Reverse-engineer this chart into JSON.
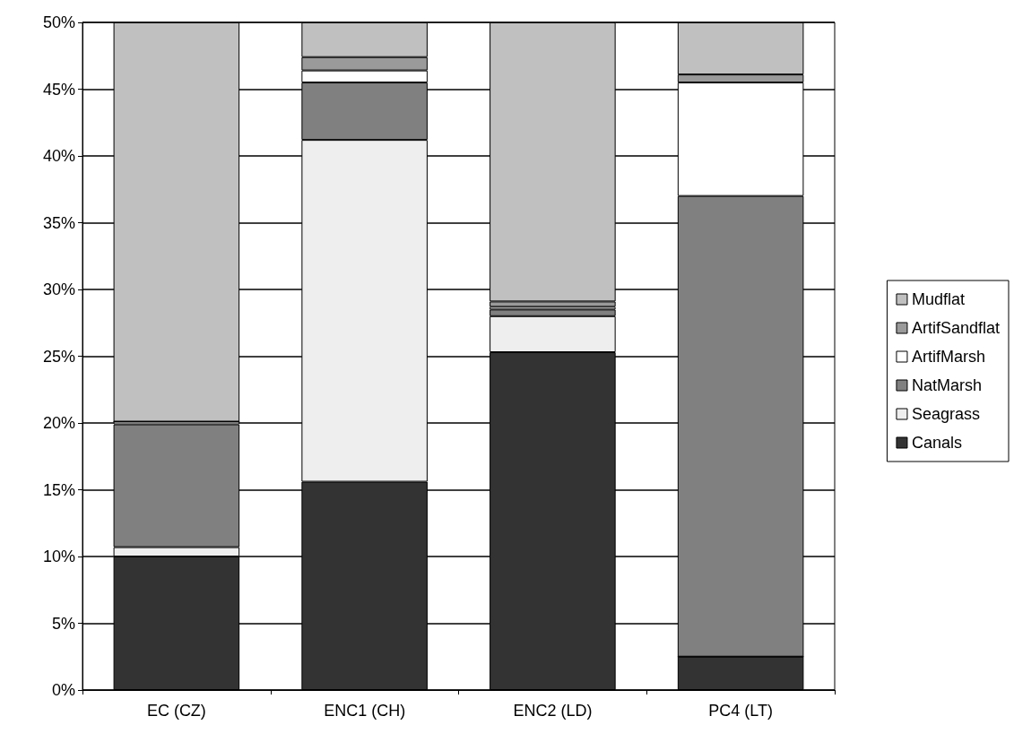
{
  "chart_data": {
    "type": "bar",
    "stacked": true,
    "categories": [
      "EC (CZ)",
      "ENC1 (CH)",
      "ENC2 (LD)",
      "PC4 (LT)"
    ],
    "series": [
      {
        "name": "Canals",
        "color": "#333333",
        "values": [
          10.0,
          15.6,
          25.3,
          2.5
        ]
      },
      {
        "name": "Seagrass",
        "color": "#eeeeee",
        "values": [
          0.7,
          25.6,
          2.7,
          0
        ]
      },
      {
        "name": "NatMarsh",
        "color": "#808080",
        "values": [
          9.2,
          4.3,
          0.5,
          34.5
        ]
      },
      {
        "name": "ArtifMarsh",
        "color": "#ffffff",
        "values": [
          0.2,
          0.9,
          0.2,
          8.5
        ]
      },
      {
        "name": "ArtifSandflat",
        "color": "#9a9a9a",
        "values": [
          0,
          1.0,
          0.4,
          0.6
        ]
      },
      {
        "name": "Mudflat",
        "color": "#c0c0c0",
        "values": [
          29.9,
          2.6,
          20.9,
          3.9
        ]
      }
    ],
    "ylim": [
      0,
      50
    ],
    "yticks": [
      {
        "value": 0,
        "label": "0%"
      },
      {
        "value": 5,
        "label": "5%"
      },
      {
        "value": 10,
        "label": "10%"
      },
      {
        "value": 15,
        "label": "15%"
      },
      {
        "value": 20,
        "label": "20%"
      },
      {
        "value": 25,
        "label": "25%"
      },
      {
        "value": 30,
        "label": "30%"
      },
      {
        "value": 35,
        "label": "35%"
      },
      {
        "value": 40,
        "label": "40%"
      },
      {
        "value": 45,
        "label": "45%"
      },
      {
        "value": 50,
        "label": "50%"
      }
    ],
    "grid": "y",
    "legend": "right"
  }
}
